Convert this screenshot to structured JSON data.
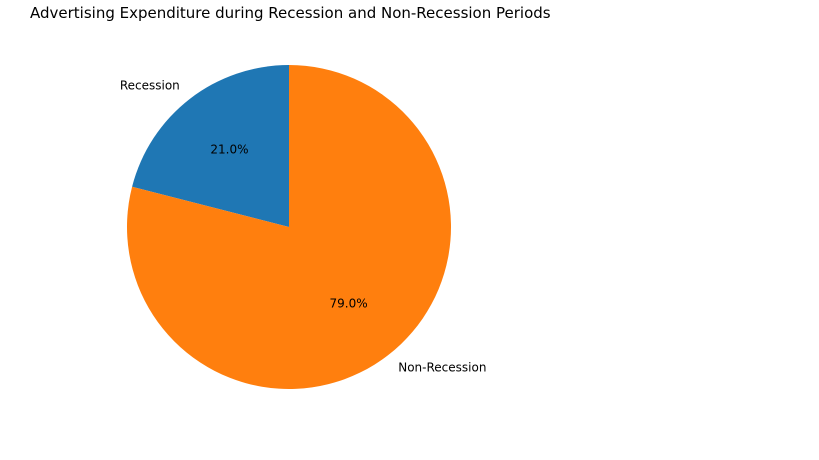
{
  "chart_data": {
    "type": "pie",
    "title": "Advertising Expenditure during Recession and Non-Recession Periods",
    "slices": [
      {
        "label": "Recession",
        "value": 21.0,
        "pct_label": "21.0%",
        "color": "#1f77b4"
      },
      {
        "label": "Non-Recession",
        "value": 79.0,
        "pct_label": "79.0%",
        "color": "#ff7f0e"
      }
    ],
    "start_angle_deg": 90,
    "direction": "counterclockwise"
  }
}
